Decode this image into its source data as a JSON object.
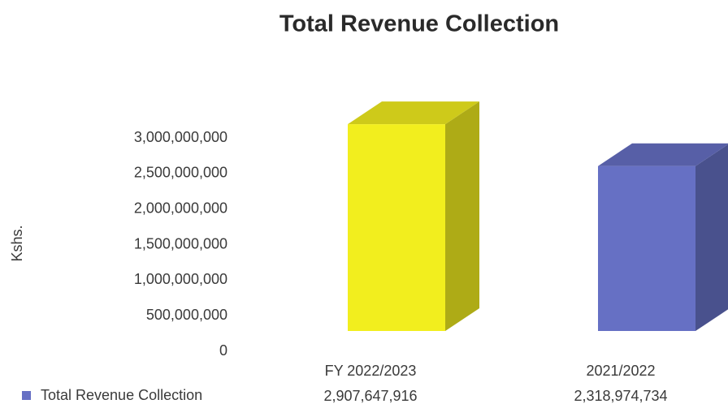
{
  "chart_data": {
    "type": "bar3d",
    "title": "Total Revenue Collection",
    "y_label": "Kshs.",
    "categories": [
      "FY 2022/2023",
      "2021/2022"
    ],
    "series": [
      {
        "name": "Total Revenue Collection",
        "color": "#6670c4",
        "colors": [
          "#f2ee1e",
          "#6670c4"
        ],
        "values": [
          2907647916,
          2318974734
        ],
        "value_labels": [
          "2,907,647,916",
          "2,318,974,734"
        ]
      }
    ],
    "ylim": [
      0,
      3000000000
    ],
    "yticks": [
      0,
      {
        "value": 500000000,
        "label": "500,000,000"
      },
      {
        "value": 1000000000,
        "label": "1,000,000,000"
      },
      {
        "value": 1500000000,
        "label": "1,500,000,000"
      },
      {
        "value": 2000000000,
        "label": "2,000,000,000"
      },
      {
        "value": 2500000000,
        "label": "2,500,000,000"
      },
      {
        "value": 3000000000,
        "label": "3,000,000,000"
      }
    ],
    "grid": false,
    "legend": "bottom-left"
  }
}
